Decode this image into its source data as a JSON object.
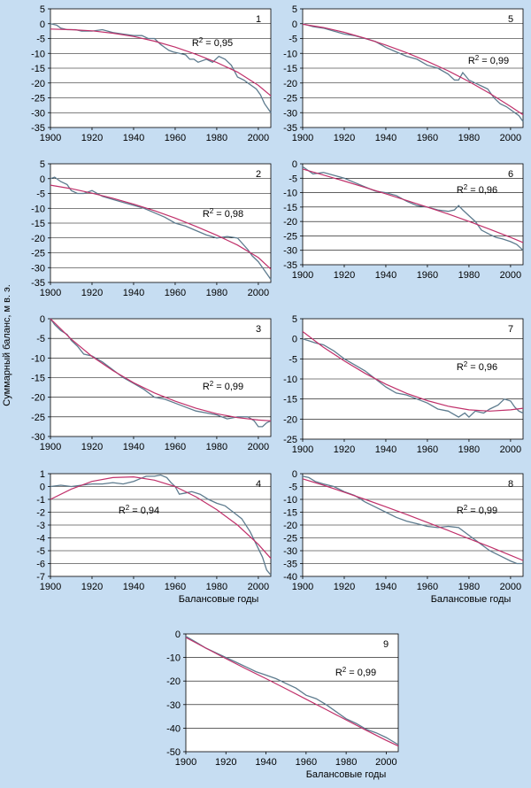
{
  "figure": {
    "y_axis_label": "Суммарный баланс,  м в. э.",
    "x_axis_label": "Балансовые годы"
  },
  "colors": {
    "background": "#c6ddf2",
    "plot": "#ffffff",
    "observed": "#5d7b8e",
    "fit": "#c0306a",
    "grid": "#000000"
  },
  "chart_data": [
    {
      "type": "line",
      "panel": "1",
      "r2_label": "R² = 0,95",
      "show_xlabel": false,
      "xlim": [
        1900,
        2006
      ],
      "ylim": [
        -35,
        5
      ],
      "xticks": [
        1900,
        1920,
        1940,
        1960,
        1980,
        2000
      ],
      "yticks": [
        5,
        0,
        -5,
        -10,
        -15,
        -20,
        -25,
        -30,
        -35
      ],
      "series": [
        {
          "role": "observed",
          "x": [
            1900,
            1903,
            1905,
            1908,
            1912,
            1915,
            1920,
            1925,
            1930,
            1935,
            1940,
            1944,
            1947,
            1950,
            1953,
            1955,
            1957,
            1959,
            1962,
            1965,
            1967,
            1969,
            1971,
            1975,
            1978,
            1981,
            1984,
            1987,
            1990,
            1993,
            1995,
            1997,
            1999,
            2001,
            2003,
            2005,
            2006
          ],
          "y": [
            0,
            -0.5,
            -1.5,
            -2,
            -2,
            -2.5,
            -2.5,
            -2,
            -3,
            -3.5,
            -4,
            -4,
            -5,
            -5,
            -7,
            -8,
            -9,
            -9.5,
            -10,
            -10.5,
            -12,
            -12,
            -13,
            -12,
            -13,
            -11,
            -12,
            -14,
            -18,
            -19,
            -20,
            -21,
            -22,
            -24,
            -27,
            -29,
            -30
          ]
        },
        {
          "role": "fit",
          "x": [
            1900,
            1910,
            1920,
            1930,
            1940,
            1950,
            1960,
            1970,
            1980,
            1990,
            2000,
            2006
          ],
          "y": [
            -1.8,
            -2,
            -2.4,
            -3.2,
            -4.3,
            -5.9,
            -7.9,
            -10.3,
            -13.1,
            -16.3,
            -20.8,
            -24.3
          ]
        }
      ]
    },
    {
      "type": "line",
      "panel": "5",
      "r2_label": "R² = 0,99",
      "show_xlabel": false,
      "xlim": [
        1900,
        2006
      ],
      "ylim": [
        -35,
        5
      ],
      "xticks": [
        1900,
        1920,
        1940,
        1960,
        1980,
        2000
      ],
      "yticks": [
        5,
        0,
        -5,
        -10,
        -15,
        -20,
        -25,
        -30,
        -35
      ],
      "series": [
        {
          "role": "observed",
          "x": [
            1900,
            1905,
            1910,
            1915,
            1920,
            1925,
            1930,
            1935,
            1940,
            1945,
            1950,
            1955,
            1960,
            1965,
            1970,
            1973,
            1975,
            1977,
            1980,
            1983,
            1986,
            1989,
            1992,
            1995,
            1998,
            2000,
            2002,
            2004,
            2006
          ],
          "y": [
            0,
            -1,
            -1.5,
            -2.5,
            -3.5,
            -4,
            -5,
            -6,
            -8,
            -9.5,
            -11,
            -12,
            -14,
            -15,
            -17,
            -19,
            -19,
            -16.5,
            -19,
            -20,
            -21,
            -22,
            -25,
            -27,
            -28,
            -29,
            -30,
            -31,
            -33
          ]
        },
        {
          "role": "fit",
          "x": [
            1900,
            1910,
            1920,
            1930,
            1940,
            1950,
            1960,
            1970,
            1980,
            1990,
            2000,
            2006
          ],
          "y": [
            -0.2,
            -1.3,
            -2.9,
            -4.9,
            -7.2,
            -9.8,
            -12.7,
            -15.9,
            -19.5,
            -23.5,
            -27.9,
            -30.7
          ]
        }
      ]
    },
    {
      "type": "line",
      "panel": "2",
      "r2_label": "R² = 0,98",
      "show_xlabel": false,
      "xlim": [
        1900,
        2006
      ],
      "ylim": [
        -35,
        5
      ],
      "xticks": [
        1900,
        1920,
        1940,
        1960,
        1980,
        2000
      ],
      "yticks": [
        5,
        0,
        -5,
        -10,
        -15,
        -20,
        -25,
        -30,
        -35
      ],
      "series": [
        {
          "role": "observed",
          "x": [
            1900,
            1902,
            1905,
            1908,
            1910,
            1913,
            1916,
            1920,
            1925,
            1930,
            1935,
            1940,
            1945,
            1950,
            1955,
            1960,
            1965,
            1970,
            1975,
            1980,
            1985,
            1990,
            1995,
            1997,
            2000,
            2002,
            2004,
            2006
          ],
          "y": [
            0,
            0.5,
            -1,
            -2,
            -4,
            -5,
            -5,
            -4,
            -6,
            -7,
            -8,
            -9,
            -10,
            -11.5,
            -13,
            -15,
            -16,
            -17.5,
            -19,
            -20,
            -19.5,
            -20,
            -24,
            -26,
            -28,
            -30,
            -32,
            -34
          ]
        },
        {
          "role": "fit",
          "x": [
            1900,
            1910,
            1920,
            1930,
            1940,
            1950,
            1960,
            1970,
            1980,
            1990,
            2000,
            2006
          ],
          "y": [
            -2.2,
            -3.4,
            -4.9,
            -6.6,
            -8.6,
            -10.8,
            -13.3,
            -16.1,
            -19.1,
            -22.4,
            -26.6,
            -30.5
          ]
        }
      ]
    },
    {
      "type": "line",
      "panel": "6",
      "r2_label": "R² = 0,96",
      "show_xlabel": false,
      "xlim": [
        1900,
        2006
      ],
      "ylim": [
        -35,
        0
      ],
      "xticks": [
        1900,
        1920,
        1940,
        1960,
        1980,
        2000
      ],
      "yticks": [
        0,
        -5,
        -10,
        -15,
        -20,
        -25,
        -30,
        -35
      ],
      "series": [
        {
          "role": "observed",
          "x": [
            1900,
            1902,
            1905,
            1910,
            1915,
            1920,
            1925,
            1930,
            1935,
            1940,
            1945,
            1950,
            1955,
            1960,
            1965,
            1970,
            1973,
            1975,
            1977,
            1980,
            1983,
            1986,
            1990,
            1993,
            1996,
            2000,
            2003,
            2006
          ],
          "y": [
            -1,
            -2,
            -3.5,
            -3,
            -4,
            -5,
            -6.5,
            -8,
            -9.5,
            -10,
            -11,
            -13,
            -14.5,
            -15,
            -16,
            -16.5,
            -16,
            -14.5,
            -16,
            -18,
            -20,
            -23,
            -24.5,
            -25.5,
            -26,
            -27,
            -28,
            -30
          ]
        },
        {
          "role": "fit",
          "x": [
            1900,
            1910,
            1920,
            1930,
            1940,
            1950,
            1960,
            1970,
            1980,
            1990,
            2000,
            2006
          ],
          "y": [
            -1.8,
            -3.9,
            -6,
            -8.2,
            -10.4,
            -12.7,
            -15,
            -17.4,
            -20,
            -22.7,
            -25.5,
            -27.3
          ]
        }
      ]
    },
    {
      "type": "line",
      "panel": "3",
      "r2_label": "R² = 0,99",
      "show_xlabel": false,
      "xlim": [
        1900,
        2006
      ],
      "ylim": [
        -30,
        0
      ],
      "xticks": [
        1900,
        1920,
        1940,
        1960,
        1980,
        2000
      ],
      "yticks": [
        0,
        -5,
        -10,
        -15,
        -20,
        -25,
        -30
      ],
      "series": [
        {
          "role": "observed",
          "x": [
            1900,
            1902,
            1905,
            1908,
            1910,
            1913,
            1916,
            1920,
            1925,
            1930,
            1935,
            1940,
            1945,
            1950,
            1955,
            1960,
            1965,
            1970,
            1975,
            1980,
            1985,
            1990,
            1995,
            1998,
            2000,
            2002,
            2004,
            2006
          ],
          "y": [
            0,
            -1.5,
            -3,
            -4,
            -5.5,
            -7,
            -9,
            -9.5,
            -11,
            -13,
            -15,
            -16.5,
            -18,
            -20,
            -20.5,
            -21.5,
            -22.5,
            -23.5,
            -24,
            -24.5,
            -25.5,
            -25,
            -25,
            -26,
            -27.5,
            -27.5,
            -26.5,
            -26
          ]
        },
        {
          "role": "fit",
          "x": [
            1900,
            1910,
            1920,
            1930,
            1940,
            1950,
            1960,
            1970,
            1980,
            1990,
            2000,
            2006
          ],
          "y": [
            0,
            -5.2,
            -9.6,
            -13.2,
            -16.3,
            -18.9,
            -21,
            -22.8,
            -24.2,
            -25.2,
            -25.8,
            -26
          ]
        }
      ]
    },
    {
      "type": "line",
      "panel": "7",
      "r2_label": "R² = 0,96",
      "show_xlabel": false,
      "xlim": [
        1900,
        2006
      ],
      "ylim": [
        -25,
        5
      ],
      "xticks": [
        1900,
        1920,
        1940,
        1960,
        1980,
        2000
      ],
      "yticks": [
        5,
        0,
        -5,
        -10,
        -15,
        -20,
        -25
      ],
      "series": [
        {
          "role": "observed",
          "x": [
            1900,
            1903,
            1906,
            1910,
            1915,
            1920,
            1925,
            1930,
            1935,
            1940,
            1945,
            1950,
            1955,
            1960,
            1965,
            1970,
            1975,
            1978,
            1980,
            1983,
            1987,
            1990,
            1994,
            1997,
            2000,
            2002,
            2004,
            2006
          ],
          "y": [
            0,
            -0.5,
            -1,
            -1.5,
            -3,
            -5,
            -6.5,
            -8,
            -10,
            -12,
            -13.5,
            -14,
            -15,
            -16,
            -17.5,
            -18,
            -19.5,
            -18.5,
            -19.5,
            -18,
            -18.5,
            -17.5,
            -16.5,
            -15,
            -15.5,
            -17,
            -18,
            -18.5
          ]
        },
        {
          "role": "fit",
          "x": [
            1900,
            1910,
            1920,
            1930,
            1940,
            1950,
            1960,
            1970,
            1980,
            1990,
            2000,
            2006
          ],
          "y": [
            1.8,
            -2.1,
            -5.5,
            -8.6,
            -11.3,
            -13.6,
            -15.4,
            -16.8,
            -17.7,
            -18,
            -17.7,
            -17.3
          ]
        }
      ]
    },
    {
      "type": "line",
      "panel": "4",
      "r2_label": "R² = 0,94",
      "show_xlabel": true,
      "xlim": [
        1900,
        2006
      ],
      "ylim": [
        -7,
        1
      ],
      "xticks": [
        1900,
        1920,
        1940,
        1960,
        1980,
        2000
      ],
      "yticks": [
        1,
        0,
        -1,
        -2,
        -3,
        -4,
        -5,
        -6,
        -7
      ],
      "series": [
        {
          "role": "observed",
          "x": [
            1900,
            1905,
            1910,
            1915,
            1920,
            1925,
            1930,
            1935,
            1940,
            1943,
            1946,
            1950,
            1953,
            1956,
            1958,
            1960,
            1962,
            1965,
            1968,
            1972,
            1976,
            1980,
            1984,
            1988,
            1992,
            1996,
            1999,
            2002,
            2004,
            2006
          ],
          "y": [
            0,
            0.1,
            0,
            0.1,
            0.2,
            0.2,
            0.3,
            0.2,
            0.4,
            0.6,
            0.8,
            0.8,
            0.9,
            0.7,
            0.3,
            0,
            -0.6,
            -0.5,
            -0.4,
            -0.6,
            -1,
            -1.3,
            -1.5,
            -2,
            -2.5,
            -3.5,
            -4.5,
            -5.5,
            -6.5,
            -6.9
          ]
        },
        {
          "role": "fit",
          "x": [
            1900,
            1910,
            1920,
            1930,
            1940,
            1950,
            1960,
            1970,
            1980,
            1990,
            2000,
            2006
          ],
          "y": [
            -1,
            -0.2,
            0.4,
            0.7,
            0.75,
            0.5,
            0,
            -0.8,
            -1.8,
            -3,
            -4.5,
            -5.6
          ]
        }
      ]
    },
    {
      "type": "line",
      "panel": "8",
      "r2_label": "R² = 0,99",
      "show_xlabel": true,
      "xlim": [
        1900,
        2006
      ],
      "ylim": [
        -40,
        0
      ],
      "xticks": [
        1900,
        1920,
        1940,
        1960,
        1980,
        2000
      ],
      "yticks": [
        0,
        -5,
        -10,
        -15,
        -20,
        -25,
        -30,
        -35,
        -40
      ],
      "series": [
        {
          "role": "observed",
          "x": [
            1900,
            1903,
            1906,
            1910,
            1915,
            1920,
            1925,
            1930,
            1935,
            1940,
            1945,
            1950,
            1955,
            1960,
            1965,
            1970,
            1975,
            1980,
            1985,
            1990,
            1995,
            2000,
            2003,
            2006
          ],
          "y": [
            -1,
            -1.5,
            -3,
            -4,
            -5,
            -7,
            -8.5,
            -11,
            -13,
            -15,
            -17,
            -18.5,
            -19.5,
            -20.5,
            -21,
            -20.5,
            -21,
            -24,
            -27,
            -30,
            -32,
            -34,
            -35,
            -35
          ]
        },
        {
          "role": "fit",
          "x": [
            1900,
            1910,
            1920,
            1930,
            1940,
            1950,
            1960,
            1970,
            1980,
            1990,
            2000,
            2006
          ],
          "y": [
            -2,
            -4.5,
            -7.2,
            -10,
            -12.9,
            -15.9,
            -19,
            -22.1,
            -25.3,
            -28.5,
            -31.8,
            -33.8
          ]
        }
      ]
    },
    {
      "type": "line",
      "panel": "9",
      "r2_label": "R² = 0,99",
      "show_xlabel": true,
      "xlim": [
        1900,
        2006
      ],
      "ylim": [
        -50,
        0
      ],
      "xticks": [
        1900,
        1920,
        1940,
        1960,
        1980,
        2000
      ],
      "yticks": [
        0,
        -10,
        -20,
        -30,
        -40,
        -50
      ],
      "series": [
        {
          "role": "observed",
          "x": [
            1900,
            1903,
            1906,
            1910,
            1915,
            1920,
            1925,
            1930,
            1935,
            1940,
            1945,
            1950,
            1955,
            1960,
            1965,
            1970,
            1975,
            1980,
            1985,
            1990,
            1995,
            2000,
            2003,
            2006
          ],
          "y": [
            -1,
            -2.5,
            -4,
            -6,
            -8,
            -10,
            -12,
            -14,
            -16,
            -17.5,
            -19,
            -21,
            -23,
            -26,
            -27.5,
            -30,
            -33,
            -36,
            -38,
            -40.5,
            -42,
            -44,
            -45.5,
            -47
          ]
        },
        {
          "role": "fit",
          "x": [
            1900,
            1910,
            1920,
            1930,
            1940,
            1950,
            1960,
            1970,
            1980,
            1990,
            2000,
            2006
          ],
          "y": [
            -1.5,
            -6,
            -10.5,
            -14.8,
            -19,
            -23.3,
            -27.7,
            -32.1,
            -36.5,
            -40.9,
            -45.2,
            -47.6
          ]
        }
      ]
    }
  ]
}
